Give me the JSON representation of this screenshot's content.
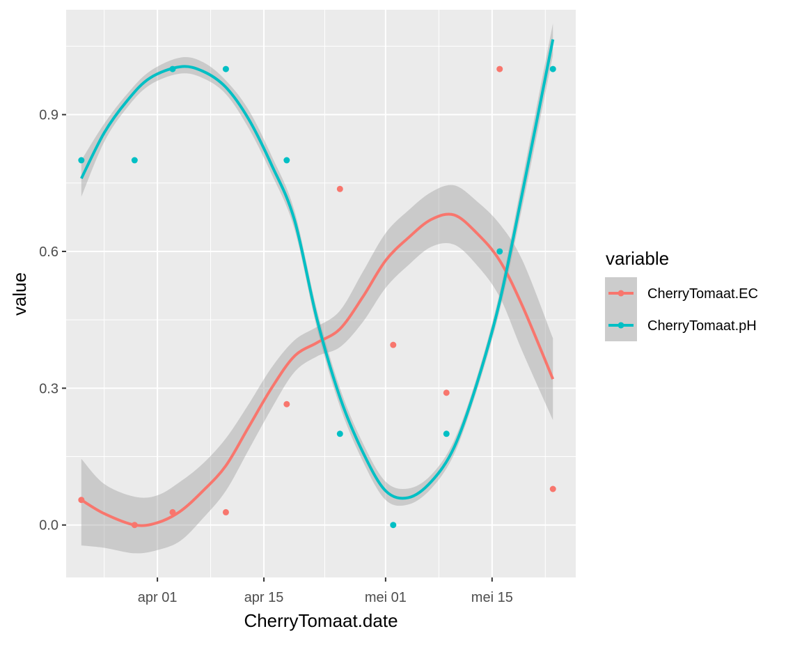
{
  "chart_data": {
    "type": "line",
    "xlabel": "CherryTomaat.date",
    "ylabel": "value",
    "x_scale": "date",
    "xlim": [
      "2023-03-20",
      "2023-05-26"
    ],
    "ylim": [
      -0.115,
      1.13
    ],
    "x_ticks": [
      {
        "date": "2023-04-01",
        "label": "apr 01"
      },
      {
        "date": "2023-04-15",
        "label": "apr 15"
      },
      {
        "date": "2023-05-01",
        "label": "mei 01"
      },
      {
        "date": "2023-05-15",
        "label": "mei 15"
      }
    ],
    "y_ticks": [
      {
        "value": 0.0,
        "label": "0.0"
      },
      {
        "value": 0.3,
        "label": "0.3"
      },
      {
        "value": 0.6,
        "label": "0.6"
      },
      {
        "value": 0.9,
        "label": "0.9"
      }
    ],
    "panel_background": "#ebebeb",
    "grid": true,
    "legend": {
      "title": "variable",
      "position": "right"
    },
    "series": [
      {
        "name": "CherryTomaat.EC",
        "color": "#f8766d",
        "points": [
          {
            "x": "2023-03-22",
            "y": 0.055
          },
          {
            "x": "2023-03-29",
            "y": 0.0
          },
          {
            "x": "2023-04-03",
            "y": 0.028
          },
          {
            "x": "2023-04-10",
            "y": 0.028
          },
          {
            "x": "2023-04-18",
            "y": 0.265
          },
          {
            "x": "2023-04-25",
            "y": 0.737
          },
          {
            "x": "2023-05-02",
            "y": 0.395
          },
          {
            "x": "2023-05-09",
            "y": 0.29
          },
          {
            "x": "2023-05-16",
            "y": 1.0
          },
          {
            "x": "2023-05-23",
            "y": 0.079
          }
        ],
        "smooth": [
          {
            "x": "2023-03-22",
            "y": 0.055
          },
          {
            "x": "2023-03-25",
            "y": 0.025
          },
          {
            "x": "2023-03-29",
            "y": 0.0
          },
          {
            "x": "2023-04-01",
            "y": 0.005
          },
          {
            "x": "2023-04-04",
            "y": 0.03
          },
          {
            "x": "2023-04-07",
            "y": 0.075
          },
          {
            "x": "2023-04-10",
            "y": 0.13
          },
          {
            "x": "2023-04-13",
            "y": 0.215
          },
          {
            "x": "2023-04-16",
            "y": 0.3
          },
          {
            "x": "2023-04-19",
            "y": 0.37
          },
          {
            "x": "2023-04-22",
            "y": 0.4
          },
          {
            "x": "2023-04-25",
            "y": 0.43
          },
          {
            "x": "2023-04-28",
            "y": 0.5
          },
          {
            "x": "2023-05-01",
            "y": 0.58
          },
          {
            "x": "2023-05-04",
            "y": 0.63
          },
          {
            "x": "2023-05-07",
            "y": 0.67
          },
          {
            "x": "2023-05-10",
            "y": 0.68
          },
          {
            "x": "2023-05-13",
            "y": 0.64
          },
          {
            "x": "2023-05-16",
            "y": 0.58
          },
          {
            "x": "2023-05-19",
            "y": 0.48
          },
          {
            "x": "2023-05-23",
            "y": 0.32
          }
        ],
        "band_low": [
          {
            "x": "2023-03-22",
            "y": -0.045
          },
          {
            "x": "2023-03-25",
            "y": -0.05
          },
          {
            "x": "2023-03-29",
            "y": -0.062
          },
          {
            "x": "2023-04-01",
            "y": -0.055
          },
          {
            "x": "2023-04-04",
            "y": -0.035
          },
          {
            "x": "2023-04-07",
            "y": 0.015
          },
          {
            "x": "2023-04-10",
            "y": 0.075
          },
          {
            "x": "2023-04-13",
            "y": 0.165
          },
          {
            "x": "2023-04-16",
            "y": 0.255
          },
          {
            "x": "2023-04-19",
            "y": 0.335
          },
          {
            "x": "2023-04-22",
            "y": 0.37
          },
          {
            "x": "2023-04-25",
            "y": 0.39
          },
          {
            "x": "2023-04-28",
            "y": 0.445
          },
          {
            "x": "2023-05-01",
            "y": 0.52
          },
          {
            "x": "2023-05-04",
            "y": 0.57
          },
          {
            "x": "2023-05-07",
            "y": 0.61
          },
          {
            "x": "2023-05-10",
            "y": 0.615
          },
          {
            "x": "2023-05-13",
            "y": 0.57
          },
          {
            "x": "2023-05-16",
            "y": 0.5
          },
          {
            "x": "2023-05-19",
            "y": 0.38
          },
          {
            "x": "2023-05-23",
            "y": 0.23
          }
        ],
        "band_high": [
          {
            "x": "2023-03-22",
            "y": 0.145
          },
          {
            "x": "2023-03-25",
            "y": 0.09
          },
          {
            "x": "2023-03-29",
            "y": 0.062
          },
          {
            "x": "2023-04-01",
            "y": 0.065
          },
          {
            "x": "2023-04-04",
            "y": 0.095
          },
          {
            "x": "2023-04-07",
            "y": 0.135
          },
          {
            "x": "2023-04-10",
            "y": 0.19
          },
          {
            "x": "2023-04-13",
            "y": 0.265
          },
          {
            "x": "2023-04-16",
            "y": 0.345
          },
          {
            "x": "2023-04-19",
            "y": 0.405
          },
          {
            "x": "2023-04-22",
            "y": 0.435
          },
          {
            "x": "2023-04-25",
            "y": 0.47
          },
          {
            "x": "2023-04-28",
            "y": 0.555
          },
          {
            "x": "2023-05-01",
            "y": 0.64
          },
          {
            "x": "2023-05-04",
            "y": 0.69
          },
          {
            "x": "2023-05-07",
            "y": 0.73
          },
          {
            "x": "2023-05-10",
            "y": 0.745
          },
          {
            "x": "2023-05-13",
            "y": 0.71
          },
          {
            "x": "2023-05-16",
            "y": 0.66
          },
          {
            "x": "2023-05-19",
            "y": 0.58
          },
          {
            "x": "2023-05-23",
            "y": 0.41
          }
        ]
      },
      {
        "name": "CherryTomaat.pH",
        "color": "#00bfc4",
        "points": [
          {
            "x": "2023-03-22",
            "y": 0.8
          },
          {
            "x": "2023-03-29",
            "y": 0.8
          },
          {
            "x": "2023-04-03",
            "y": 1.0
          },
          {
            "x": "2023-04-10",
            "y": 1.0
          },
          {
            "x": "2023-04-18",
            "y": 0.8
          },
          {
            "x": "2023-04-25",
            "y": 0.2
          },
          {
            "x": "2023-05-02",
            "y": 0.0
          },
          {
            "x": "2023-05-09",
            "y": 0.2
          },
          {
            "x": "2023-05-16",
            "y": 0.6
          },
          {
            "x": "2023-05-23",
            "y": 1.0
          }
        ],
        "smooth": [
          {
            "x": "2023-03-22",
            "y": 0.76
          },
          {
            "x": "2023-03-25",
            "y": 0.86
          },
          {
            "x": "2023-03-28",
            "y": 0.93
          },
          {
            "x": "2023-03-31",
            "y": 0.98
          },
          {
            "x": "2023-04-04",
            "y": 1.005
          },
          {
            "x": "2023-04-07",
            "y": 0.995
          },
          {
            "x": "2023-04-10",
            "y": 0.96
          },
          {
            "x": "2023-04-13",
            "y": 0.89
          },
          {
            "x": "2023-04-16",
            "y": 0.79
          },
          {
            "x": "2023-04-19",
            "y": 0.67
          },
          {
            "x": "2023-04-22",
            "y": 0.45
          },
          {
            "x": "2023-04-25",
            "y": 0.28
          },
          {
            "x": "2023-04-28",
            "y": 0.16
          },
          {
            "x": "2023-05-01",
            "y": 0.075
          },
          {
            "x": "2023-05-04",
            "y": 0.06
          },
          {
            "x": "2023-05-07",
            "y": 0.095
          },
          {
            "x": "2023-05-10",
            "y": 0.17
          },
          {
            "x": "2023-05-13",
            "y": 0.31
          },
          {
            "x": "2023-05-16",
            "y": 0.49
          },
          {
            "x": "2023-05-19",
            "y": 0.73
          },
          {
            "x": "2023-05-23",
            "y": 1.065
          }
        ],
        "band_low": [
          {
            "x": "2023-03-22",
            "y": 0.72
          },
          {
            "x": "2023-03-25",
            "y": 0.84
          },
          {
            "x": "2023-03-28",
            "y": 0.915
          },
          {
            "x": "2023-03-31",
            "y": 0.965
          },
          {
            "x": "2023-04-04",
            "y": 0.99
          },
          {
            "x": "2023-04-07",
            "y": 0.98
          },
          {
            "x": "2023-04-10",
            "y": 0.945
          },
          {
            "x": "2023-04-13",
            "y": 0.87
          },
          {
            "x": "2023-04-16",
            "y": 0.77
          },
          {
            "x": "2023-04-19",
            "y": 0.65
          },
          {
            "x": "2023-04-22",
            "y": 0.43
          },
          {
            "x": "2023-04-25",
            "y": 0.26
          },
          {
            "x": "2023-04-28",
            "y": 0.14
          },
          {
            "x": "2023-05-01",
            "y": 0.055
          },
          {
            "x": "2023-05-04",
            "y": 0.045
          },
          {
            "x": "2023-05-07",
            "y": 0.08
          },
          {
            "x": "2023-05-10",
            "y": 0.155
          },
          {
            "x": "2023-05-13",
            "y": 0.295
          },
          {
            "x": "2023-05-16",
            "y": 0.47
          },
          {
            "x": "2023-05-19",
            "y": 0.7
          },
          {
            "x": "2023-05-23",
            "y": 1.03
          }
        ],
        "band_high": [
          {
            "x": "2023-03-22",
            "y": 0.8
          },
          {
            "x": "2023-03-25",
            "y": 0.88
          },
          {
            "x": "2023-03-28",
            "y": 0.945
          },
          {
            "x": "2023-03-31",
            "y": 0.995
          },
          {
            "x": "2023-04-04",
            "y": 1.025
          },
          {
            "x": "2023-04-07",
            "y": 1.015
          },
          {
            "x": "2023-04-10",
            "y": 0.975
          },
          {
            "x": "2023-04-13",
            "y": 0.91
          },
          {
            "x": "2023-04-16",
            "y": 0.81
          },
          {
            "x": "2023-04-19",
            "y": 0.69
          },
          {
            "x": "2023-04-22",
            "y": 0.47
          },
          {
            "x": "2023-04-25",
            "y": 0.3
          },
          {
            "x": "2023-04-28",
            "y": 0.18
          },
          {
            "x": "2023-05-01",
            "y": 0.095
          },
          {
            "x": "2023-05-04",
            "y": 0.08
          },
          {
            "x": "2023-05-07",
            "y": 0.11
          },
          {
            "x": "2023-05-10",
            "y": 0.185
          },
          {
            "x": "2023-05-13",
            "y": 0.325
          },
          {
            "x": "2023-05-16",
            "y": 0.51
          },
          {
            "x": "2023-05-19",
            "y": 0.76
          },
          {
            "x": "2023-05-23",
            "y": 1.1
          }
        ]
      }
    ]
  }
}
